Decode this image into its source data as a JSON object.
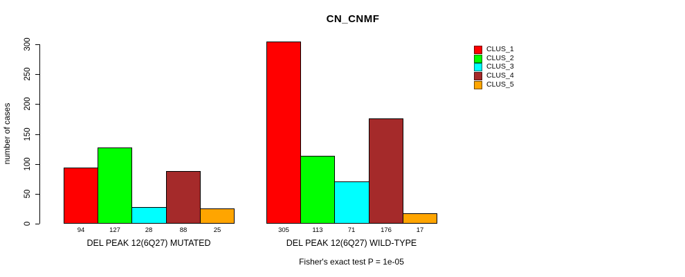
{
  "chart_data": {
    "type": "bar",
    "title": "CN_CNMF",
    "ylabel": "number of cases",
    "ylim": [
      0,
      300
    ],
    "yticks": [
      0,
      50,
      100,
      150,
      200,
      250,
      300
    ],
    "grid": false,
    "legend_position": "right",
    "categories": [
      "DEL PEAK 12(6Q27) MUTATED",
      "DEL PEAK 12(6Q27) WILD-TYPE"
    ],
    "series": [
      {
        "name": "CLUS_1",
        "color": "#ff0000",
        "values": [
          94,
          305
        ]
      },
      {
        "name": "CLUS_2",
        "color": "#00ff00",
        "values": [
          127,
          113
        ]
      },
      {
        "name": "CLUS_3",
        "color": "#00ffff",
        "values": [
          28,
          71
        ]
      },
      {
        "name": "CLUS_4",
        "color": "#a52a2a",
        "values": [
          88,
          176
        ]
      },
      {
        "name": "CLUS_5",
        "color": "#ffa500",
        "values": [
          25,
          17
        ]
      }
    ],
    "bar_value_labels": [
      [
        94,
        127,
        28,
        88,
        25
      ],
      [
        305,
        113,
        71,
        176,
        17
      ]
    ],
    "annotation": "Fisher's exact test P = 1e-05",
    "colors": {
      "background": "#ffffff",
      "axis": "#000000",
      "text": "#000000"
    }
  }
}
